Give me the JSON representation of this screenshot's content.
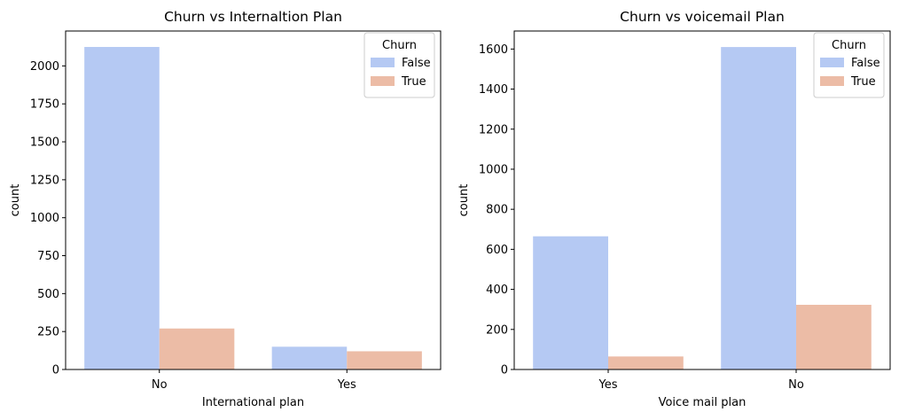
{
  "chart_data": [
    {
      "type": "bar",
      "title": "Churn vs Internaltion Plan",
      "xlabel": "International plan",
      "ylabel": "count",
      "categories": [
        "No",
        "Yes"
      ],
      "ylim": [
        0,
        2230
      ],
      "yticks": [
        0,
        250,
        500,
        750,
        1000,
        1250,
        1500,
        1750,
        2000
      ],
      "legend": {
        "title": "Churn",
        "position": "top-right"
      },
      "series": [
        {
          "name": "False",
          "values": [
            2125,
            150
          ],
          "color": "#b5c9f3"
        },
        {
          "name": "True",
          "values": [
            270,
            120
          ],
          "color": "#ecbca6"
        }
      ]
    },
    {
      "type": "bar",
      "title": "Churn vs voicemail Plan",
      "xlabel": "Voice mail plan",
      "ylabel": "count",
      "categories": [
        "Yes",
        "No"
      ],
      "ylim": [
        0,
        1690
      ],
      "yticks": [
        0,
        200,
        400,
        600,
        800,
        1000,
        1200,
        1400,
        1600
      ],
      "legend": {
        "title": "Churn",
        "position": "top-right"
      },
      "series": [
        {
          "name": "False",
          "values": [
            665,
            1610
          ],
          "color": "#b5c9f3"
        },
        {
          "name": "True",
          "values": [
            65,
            323
          ],
          "color": "#ecbca6"
        }
      ]
    }
  ]
}
